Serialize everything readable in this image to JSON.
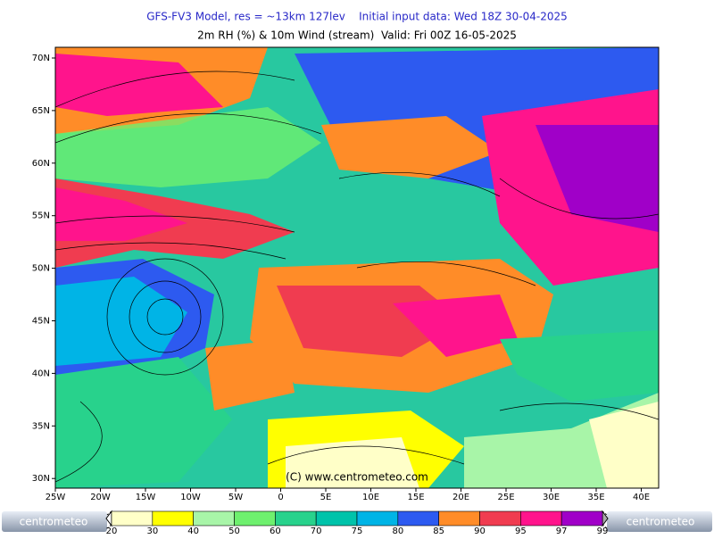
{
  "header": {
    "title": "GFS-FV3 Model, res = ~13km 127lev    Initial input data: Wed 18Z 30-04-2025",
    "subtitle": "2m RH (%) & 10m Wind (stream)  Valid: Fri 00Z 16-05-2025"
  },
  "map": {
    "lat_labels": [
      "70N",
      "65N",
      "60N",
      "55N",
      "50N",
      "45N",
      "40N",
      "35N",
      "30N"
    ],
    "lon_labels": [
      "25W",
      "20W",
      "15W",
      "10W",
      "5W",
      "0",
      "5E",
      "10E",
      "15E",
      "20E",
      "25E",
      "30E",
      "35E",
      "40E"
    ],
    "watermark": "(C) www.centrometeo.com"
  },
  "colorbar": {
    "levels": [
      20,
      30,
      40,
      50,
      60,
      70,
      75,
      80,
      85,
      90,
      95,
      97,
      99
    ],
    "colors": [
      "#ffffc8",
      "#ffff00",
      "#a8f5a8",
      "#6ef06e",
      "#28d28c",
      "#00c3aa",
      "#00b4e6",
      "#2d5af0",
      "#ff8c28",
      "#f03c50",
      "#ff148c",
      "#a000c8"
    ]
  },
  "logo": "centrometeo"
}
